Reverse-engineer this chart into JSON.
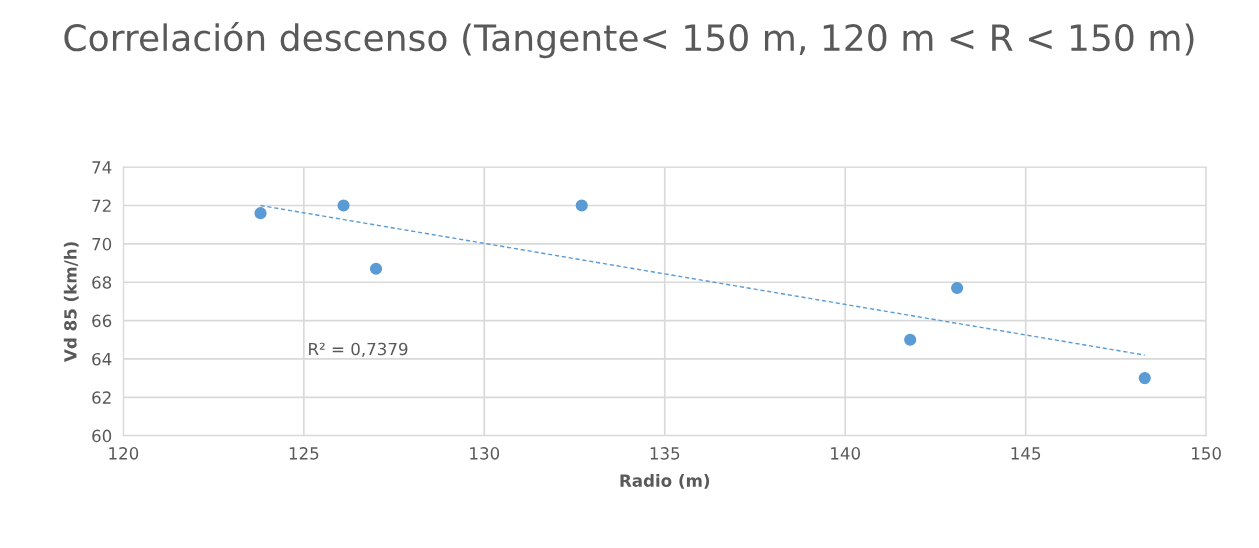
{
  "chart_data": {
    "type": "scatter",
    "title": "Correlación descenso (Tangente< 150 m, 120 m < R < 150 m)",
    "xlabel": "Radio (m)",
    "ylabel": "Vd 85 (km/h)",
    "series": [
      {
        "color": "#5b9bd5",
        "marker": "circle",
        "x": [
          123.8,
          126.1,
          127.0,
          132.7,
          141.8,
          143.1,
          148.3
        ],
        "values": [
          71.6,
          72.0,
          68.7,
          72.0,
          65.0,
          67.7,
          63.0
        ]
      },
      {
        "type": "line",
        "color": "#5b9bd5",
        "line_style": "dashed",
        "marker": "none",
        "x": [
          123.8,
          148.3
        ],
        "values": [
          72.0,
          64.2
        ]
      }
    ],
    "annotations": [
      "R² = 0,7379"
    ],
    "xlim": [
      120,
      150
    ],
    "xticks": [
      120,
      125,
      130,
      135,
      140,
      145,
      150
    ],
    "ylim": [
      60,
      74
    ],
    "yticks": [
      60,
      62,
      64,
      66,
      68,
      70,
      72,
      74
    ],
    "grid": true
  }
}
